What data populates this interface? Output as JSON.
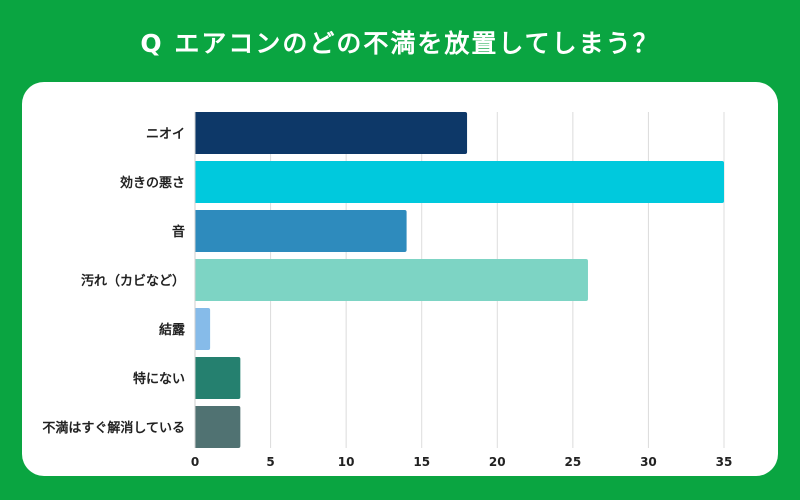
{
  "title": "Q エアコンのどの不満を放置してしまう？",
  "chart_data": {
    "type": "bar",
    "orientation": "horizontal",
    "title": "Q エアコンのどの不満を放置してしまう？",
    "categories": [
      "ニオイ",
      "効きの悪さ",
      "音",
      "汚れ（カビなど）",
      "結露",
      "特にない",
      "不満はすぐ解消している"
    ],
    "values": [
      18,
      35,
      14,
      26,
      1,
      3,
      3
    ],
    "colors": [
      "#0d3868",
      "#00c9dd",
      "#2e8bbd",
      "#7dd4c4",
      "#86bbe9",
      "#25806f",
      "#507272"
    ],
    "xlim": [
      0,
      35
    ],
    "xticks": [
      0,
      5,
      10,
      15,
      20,
      25,
      30,
      35
    ],
    "grid": true,
    "xlabel": "",
    "ylabel": ""
  }
}
